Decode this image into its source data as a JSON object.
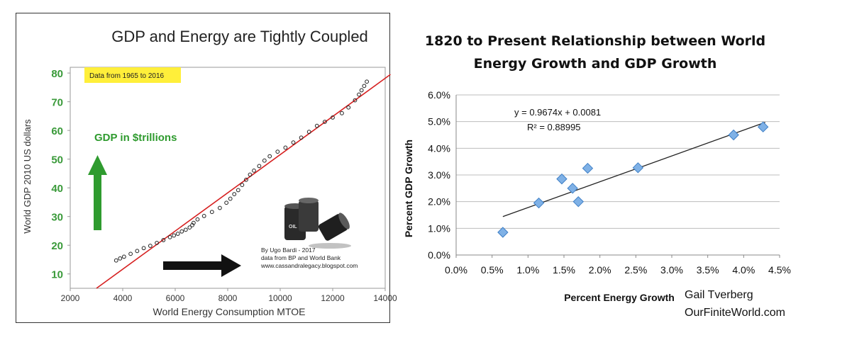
{
  "colors": {
    "left_title": "#222222",
    "left_axis_tick": "#3a9a3a",
    "fit_line": "#d62020",
    "points": "#222222",
    "note_bg": "#ffef3a",
    "gdp_green": "#2f9b2f",
    "right_marker": "#7fb1e6",
    "right_marker_stroke": "#3e7fc6",
    "right_grid": "#bdbdbd",
    "right_line": "#222222"
  },
  "left": {
    "note": "Data from 1965 to 2016",
    "gdp_label": "GDP in $trillions",
    "credit": [
      "By Ugo Bardi - 2017",
      "data from BP and World Bank",
      "www.cassandralegacy.blogspot.com"
    ],
    "barrels_icon": "oil-barrels-icon"
  },
  "right": {
    "credit": [
      "Gail Tverberg",
      "OurFiniteWorld.com"
    ]
  },
  "chart_data": [
    {
      "type": "scatter",
      "title": "GDP and Energy are Tightly Coupled",
      "xlabel": "World Energy Consumption MTOE",
      "ylabel": "World GDP 2010 US dollars",
      "xlim": [
        2000,
        14000
      ],
      "ylim": [
        5,
        82
      ],
      "xticks": [
        2000,
        4000,
        6000,
        8000,
        10000,
        12000,
        14000
      ],
      "yticks": [
        10,
        20,
        30,
        40,
        50,
        60,
        70,
        80
      ],
      "grid": false,
      "trendline": {
        "x": [
          3000,
          14200
        ],
        "y": [
          5,
          79.5
        ]
      },
      "points": [
        [
          3750,
          14.7
        ],
        [
          3900,
          15.4
        ],
        [
          4050,
          16.0
        ],
        [
          4300,
          17.0
        ],
        [
          4550,
          18.0
        ],
        [
          4800,
          19.0
        ],
        [
          5050,
          19.8
        ],
        [
          5300,
          20.8
        ],
        [
          5550,
          21.8
        ],
        [
          5800,
          22.8
        ],
        [
          5950,
          23.4
        ],
        [
          6100,
          24.0
        ],
        [
          6250,
          24.8
        ],
        [
          6400,
          25.4
        ],
        [
          6550,
          26.2
        ],
        [
          6650,
          27.0
        ],
        [
          6700,
          27.8
        ],
        [
          6850,
          29.0
        ],
        [
          7100,
          30.2
        ],
        [
          7400,
          31.6
        ],
        [
          7700,
          33.0
        ],
        [
          7950,
          34.8
        ],
        [
          8100,
          36.2
        ],
        [
          8250,
          37.8
        ],
        [
          8400,
          39.2
        ],
        [
          8550,
          41.0
        ],
        [
          8700,
          42.8
        ],
        [
          8850,
          44.6
        ],
        [
          9000,
          46.0
        ],
        [
          9200,
          47.6
        ],
        [
          9400,
          49.5
        ],
        [
          9600,
          51.0
        ],
        [
          9900,
          52.6
        ],
        [
          10200,
          54.0
        ],
        [
          10500,
          55.8
        ],
        [
          10800,
          57.5
        ],
        [
          11100,
          59.5
        ],
        [
          11400,
          61.6
        ],
        [
          11700,
          63.0
        ],
        [
          12000,
          64.5
        ],
        [
          12350,
          66.0
        ],
        [
          12600,
          68.0
        ],
        [
          12850,
          70.5
        ],
        [
          13000,
          72.5
        ],
        [
          13100,
          74.0
        ],
        [
          13200,
          75.5
        ],
        [
          13300,
          77.0
        ]
      ]
    },
    {
      "type": "scatter",
      "title": [
        "1820 to Present Relationship between World",
        "Energy Growth and GDP Growth"
      ],
      "xlabel": "Percent Energy Growth",
      "ylabel": "Percent GDP Growth",
      "xlim": [
        0.0,
        4.5
      ],
      "ylim": [
        0.0,
        6.0
      ],
      "xticks": [
        0.0,
        0.5,
        1.0,
        1.5,
        2.0,
        2.5,
        3.0,
        3.5,
        4.0,
        4.5
      ],
      "yticks": [
        0.0,
        1.0,
        2.0,
        3.0,
        4.0,
        5.0,
        6.0
      ],
      "tick_format": "percent",
      "grid": true,
      "equation": "y = 0.9674x + 0.0081",
      "r_squared": "R² = 0.88995",
      "trendline": {
        "x": [
          0.65,
          4.3
        ],
        "y": [
          1.44,
          4.97
        ]
      },
      "points": [
        [
          0.65,
          0.85
        ],
        [
          1.15,
          1.95
        ],
        [
          1.47,
          2.85
        ],
        [
          1.62,
          2.5
        ],
        [
          1.7,
          2.0
        ],
        [
          1.83,
          3.25
        ],
        [
          2.53,
          3.27
        ],
        [
          3.86,
          4.5
        ],
        [
          4.27,
          4.8
        ]
      ]
    }
  ]
}
